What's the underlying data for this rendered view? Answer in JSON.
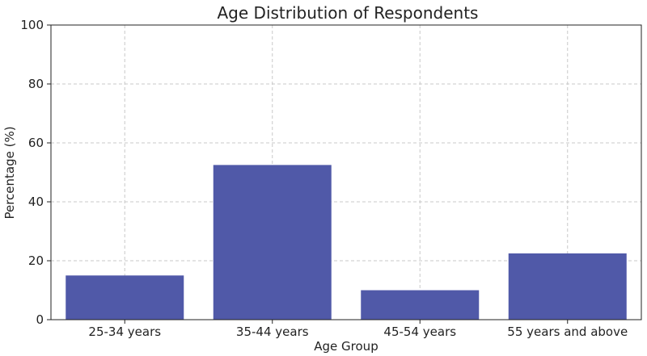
{
  "chart_data": {
    "type": "bar",
    "title": "Age Distribution of Respondents",
    "xlabel": "Age Group",
    "ylabel": "Percentage (%)",
    "categories": [
      "25-34 years",
      "35-44 years",
      "45-54 years",
      "55 years and above"
    ],
    "values": [
      15,
      52.5,
      10,
      22.5
    ],
    "ylim": [
      0,
      100
    ],
    "yticks": [
      0,
      20,
      40,
      60,
      80,
      100
    ],
    "grid": true,
    "bar_color": "#5059a8"
  }
}
